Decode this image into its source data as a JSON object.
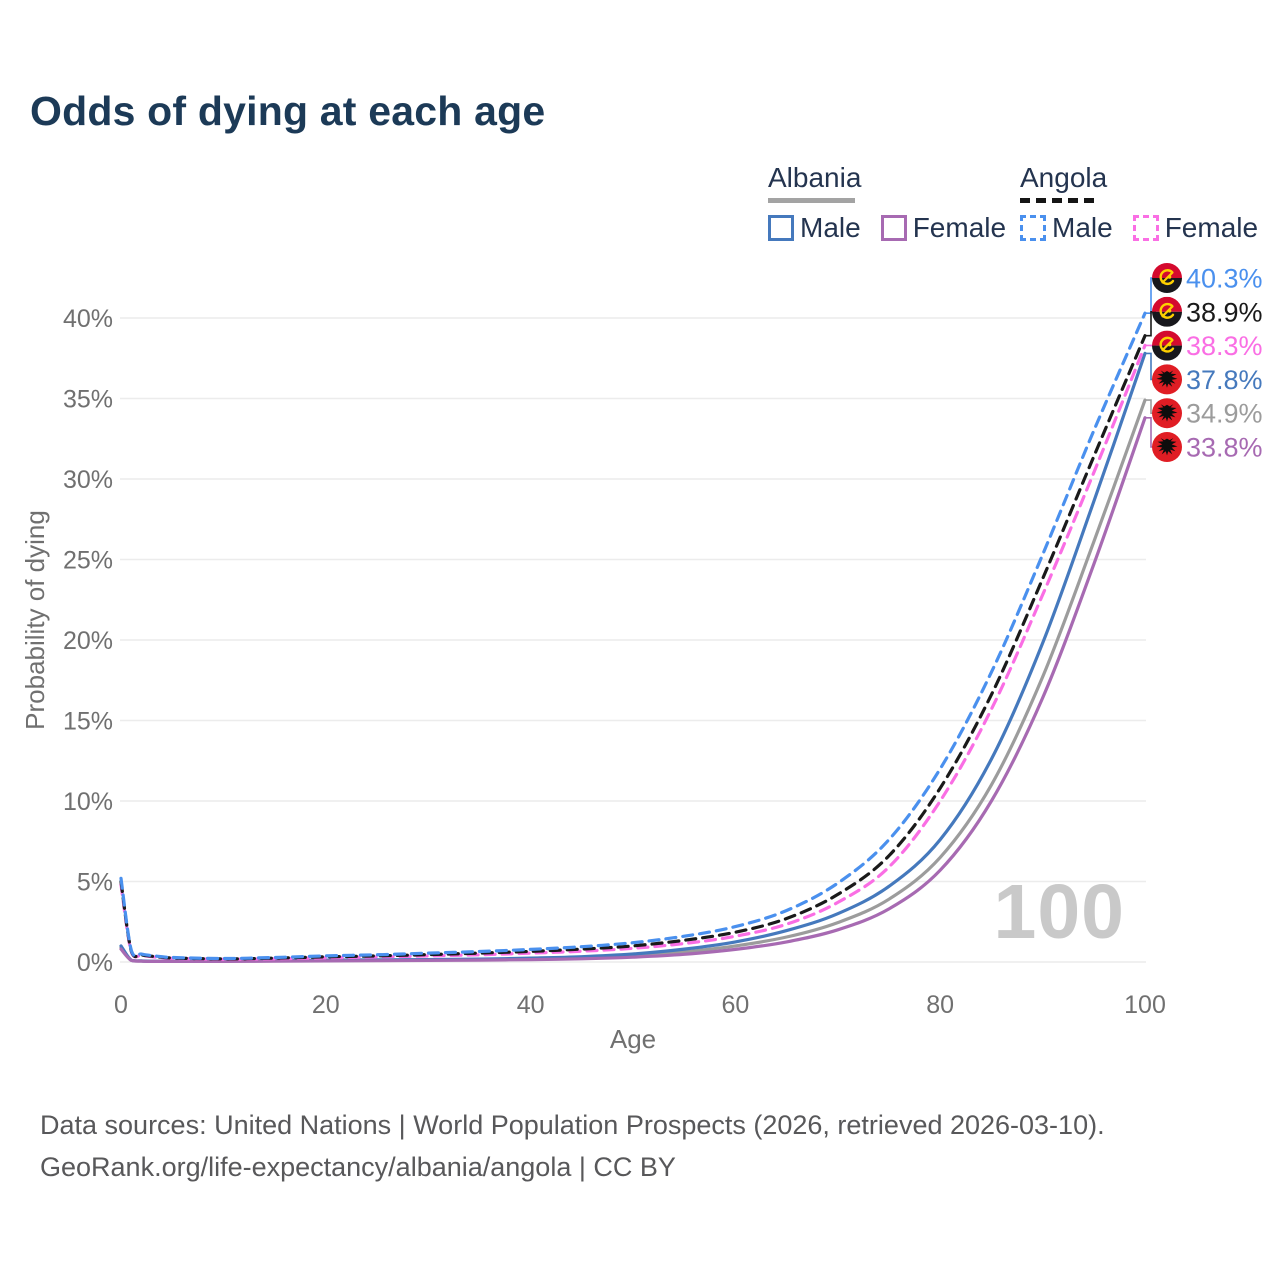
{
  "page": {
    "title": "Odds of dying at each age",
    "watermark_age": "100",
    "footer_line1": "Data sources: United Nations | World Population Prospects (2026, retrieved 2026-03-10).",
    "footer_line2": "GeoRank.org/life-expectancy/albania/angola | CC BY"
  },
  "legend": {
    "groups": [
      {
        "label": "Albania",
        "line_style": "solid",
        "underline_color": "#a3a3a3",
        "items": [
          {
            "label": "Male",
            "color": "#4579bd",
            "style": "solid"
          },
          {
            "label": "Female",
            "color": "#a76ab2",
            "style": "solid"
          }
        ]
      },
      {
        "label": "Angola",
        "line_style": "dashed",
        "underline_color": "#151515",
        "items": [
          {
            "label": "Male",
            "color": "#4a90ee",
            "style": "dashed"
          },
          {
            "label": "Female",
            "color": "#fa6ee4",
            "style": "dashed"
          }
        ]
      }
    ]
  },
  "chart_data": {
    "type": "line",
    "title": "Odds of dying at each age",
    "xlabel": "Age",
    "ylabel": "Probability of dying",
    "xlim": [
      0,
      100
    ],
    "ylim": [
      0,
      42
    ],
    "grid": "horizontal",
    "legend_position": "top-right",
    "x_ticks": [
      {
        "value": 0,
        "label": "0"
      },
      {
        "value": 20,
        "label": "20"
      },
      {
        "value": 40,
        "label": "40"
      },
      {
        "value": 60,
        "label": "60"
      },
      {
        "value": 80,
        "label": "80"
      },
      {
        "value": 100,
        "label": "100"
      }
    ],
    "y_ticks": [
      {
        "value": 0,
        "label": "0%"
      },
      {
        "value": 5,
        "label": "5%"
      },
      {
        "value": 10,
        "label": "10%"
      },
      {
        "value": 15,
        "label": "15%"
      },
      {
        "value": 20,
        "label": "20%"
      },
      {
        "value": 25,
        "label": "25%"
      },
      {
        "value": 30,
        "label": "30%"
      },
      {
        "value": 35,
        "label": "35%"
      },
      {
        "value": 40,
        "label": "40%"
      }
    ],
    "x": [
      0,
      1,
      2,
      3,
      4,
      5,
      10,
      15,
      20,
      25,
      30,
      35,
      40,
      45,
      50,
      55,
      60,
      65,
      70,
      75,
      80,
      85,
      90,
      95,
      100
    ],
    "series": [
      {
        "name": "Albania (both sexes)",
        "country": "Albania",
        "sex": "both",
        "color": "#9c9c9c",
        "dash": false,
        "end_value": 34.9,
        "end_label": "34.9%",
        "values": [
          0.9,
          0.11,
          0.06,
          0.045,
          0.04,
          0.04,
          0.05,
          0.07,
          0.1,
          0.11,
          0.13,
          0.15,
          0.2,
          0.27,
          0.4,
          0.63,
          1.0,
          1.55,
          2.45,
          3.9,
          6.5,
          11.0,
          17.7,
          26.1,
          34.9
        ]
      },
      {
        "name": "Albania Male",
        "country": "Albania",
        "sex": "male",
        "color": "#4579bd",
        "dash": false,
        "end_value": 37.8,
        "end_label": "37.8%",
        "values": [
          1.0,
          0.12,
          0.07,
          0.05,
          0.05,
          0.05,
          0.06,
          0.09,
          0.12,
          0.13,
          0.15,
          0.18,
          0.24,
          0.33,
          0.5,
          0.8,
          1.25,
          1.95,
          3.0,
          4.7,
          7.6,
          12.6,
          19.8,
          28.6,
          37.8
        ]
      },
      {
        "name": "Albania Female",
        "country": "Albania",
        "sex": "female",
        "color": "#a76ab2",
        "dash": false,
        "end_value": 33.8,
        "end_label": "33.8%",
        "values": [
          0.8,
          0.1,
          0.05,
          0.04,
          0.035,
          0.035,
          0.04,
          0.05,
          0.07,
          0.08,
          0.1,
          0.12,
          0.15,
          0.2,
          0.3,
          0.48,
          0.78,
          1.25,
          2.0,
          3.3,
          5.7,
          10.0,
          16.4,
          24.7,
          33.8
        ]
      },
      {
        "name": "Angola Female",
        "country": "Angola",
        "sex": "female",
        "color": "#fa6ee4",
        "dash": true,
        "end_value": 38.3,
        "end_label": "38.3%",
        "values": [
          4.8,
          0.65,
          0.42,
          0.33,
          0.27,
          0.23,
          0.17,
          0.2,
          0.26,
          0.31,
          0.38,
          0.45,
          0.55,
          0.67,
          0.85,
          1.15,
          1.6,
          2.35,
          3.7,
          5.9,
          10.0,
          15.7,
          22.8,
          30.4,
          38.3
        ]
      },
      {
        "name": "Angola (both sexes)",
        "country": "Angola",
        "sex": "both",
        "color": "#1a1a1a",
        "dash": true,
        "end_value": 38.9,
        "end_label": "38.9%",
        "values": [
          5.0,
          0.7,
          0.45,
          0.36,
          0.3,
          0.25,
          0.19,
          0.24,
          0.32,
          0.38,
          0.46,
          0.55,
          0.66,
          0.8,
          1.0,
          1.35,
          1.85,
          2.7,
          4.2,
          6.6,
          10.8,
          16.6,
          23.8,
          31.4,
          38.9
        ]
      },
      {
        "name": "Angola Male",
        "country": "Angola",
        "sex": "male",
        "color": "#4a90ee",
        "dash": true,
        "end_value": 40.3,
        "end_label": "40.3%",
        "values": [
          5.2,
          0.75,
          0.5,
          0.4,
          0.33,
          0.28,
          0.22,
          0.28,
          0.38,
          0.45,
          0.55,
          0.65,
          0.78,
          0.95,
          1.2,
          1.6,
          2.2,
          3.2,
          4.9,
          7.6,
          12.0,
          18.0,
          25.3,
          33.0,
          40.3
        ]
      }
    ],
    "colors": {
      "albania_male": "#4579bd",
      "albania_female": "#a76ab2",
      "albania_both": "#9c9c9c",
      "angola_male": "#4a90ee",
      "angola_female": "#fa6ee4",
      "angola_both": "#1a1a1a",
      "grid": "#ececec",
      "tick_text": "#707070",
      "title_text": "#1c3a57",
      "watermark": "#c9c9c9",
      "angola_flag_red": "#d40a2e",
      "angola_flag_black": "#17171c",
      "angola_flag_yellow": "#fdcf00",
      "albania_flag_red": "#e01d24"
    }
  }
}
